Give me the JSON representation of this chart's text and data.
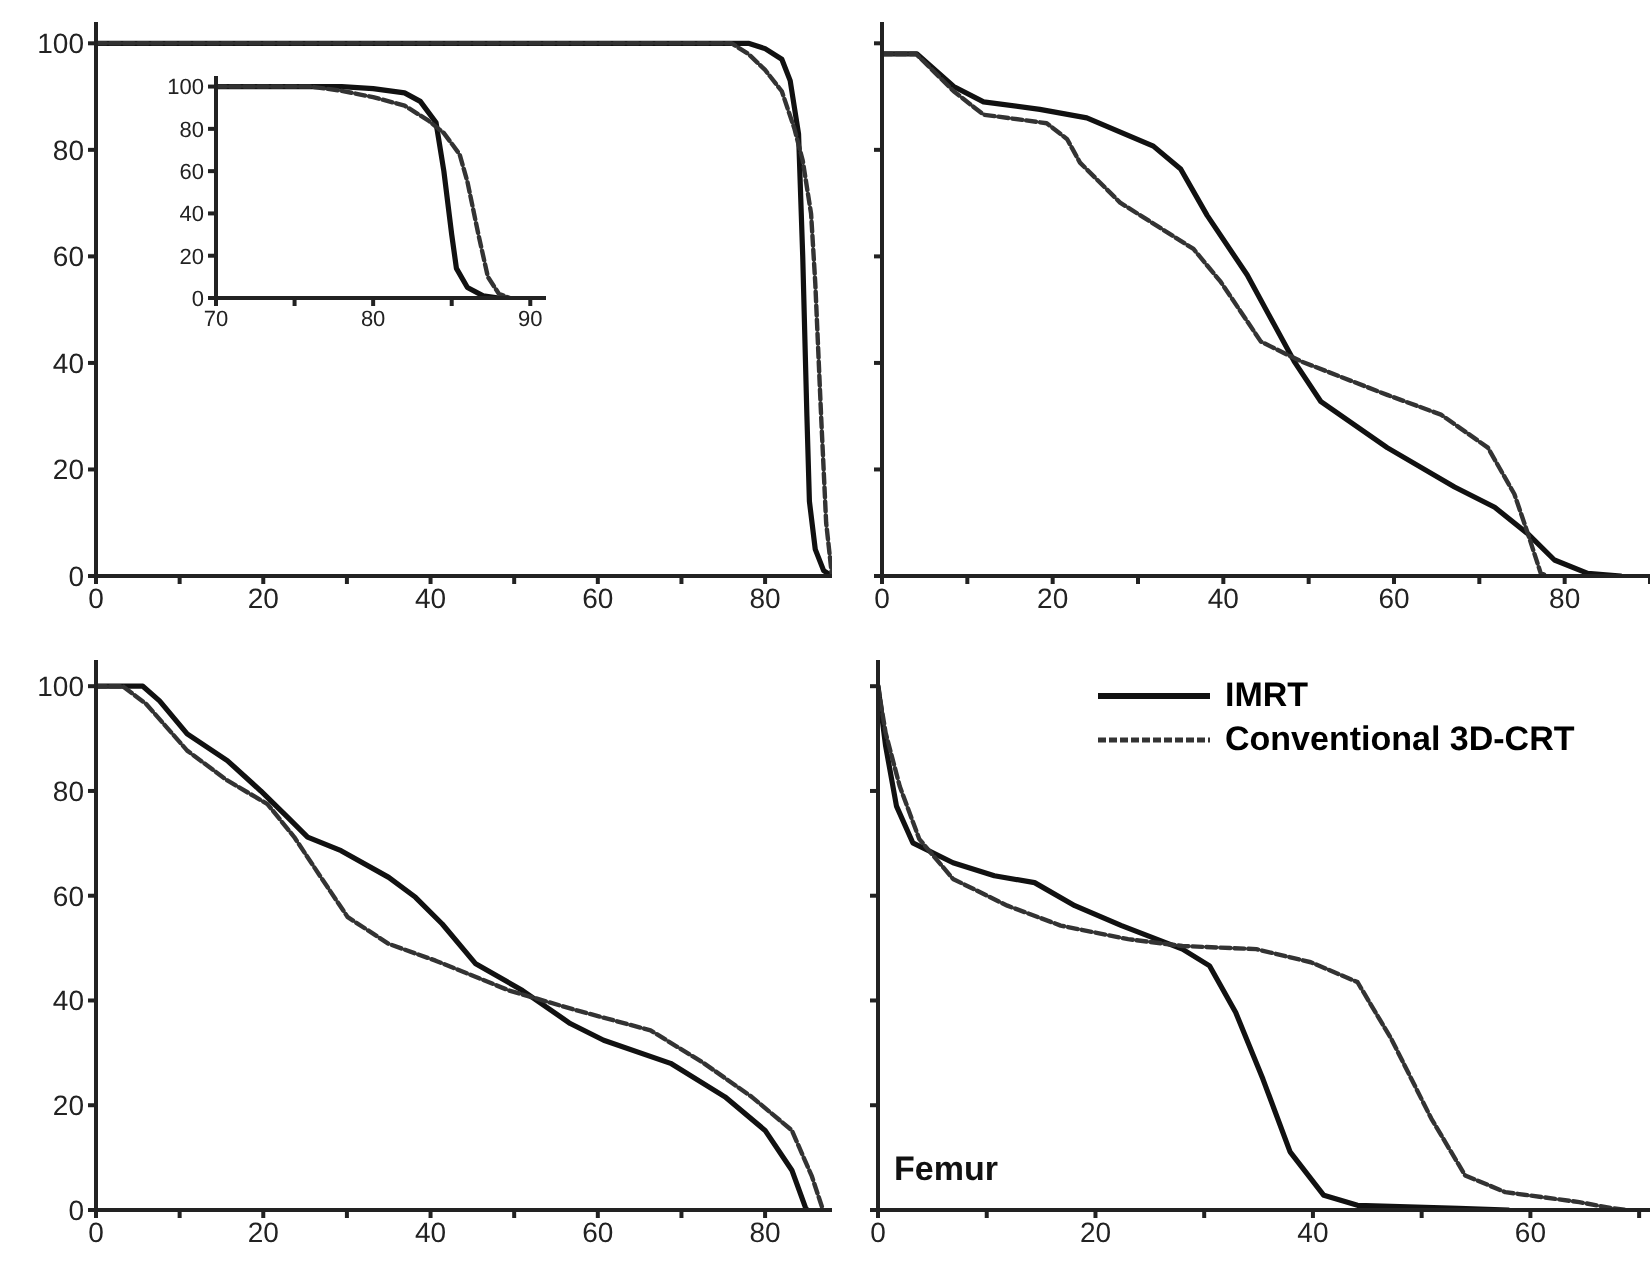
{
  "chart_data": [
    {
      "type": "line",
      "xlim": [
        0,
        88
      ],
      "ylim": [
        0,
        104
      ],
      "xticks": [
        0,
        {
          "value": 10,
          "label": null
        },
        20,
        {
          "value": 30,
          "label": null
        },
        40,
        {
          "value": 50,
          "label": null
        },
        60,
        {
          "value": 70,
          "label": null
        },
        80
      ],
      "yticks": [
        0,
        20,
        40,
        60,
        80,
        100
      ],
      "grid": false,
      "legend": false,
      "marker": "none",
      "series": [
        {
          "color": "#111111",
          "line_style": "solid",
          "x": [
            0,
            78,
            80,
            82,
            83,
            84,
            84.5,
            85,
            85.3,
            86,
            87,
            88
          ],
          "values": [
            100,
            100,
            99,
            97,
            93,
            83,
            60,
            30,
            14,
            5,
            1,
            0
          ]
        },
        {
          "color": "#333333",
          "line_style": "dashed",
          "x": [
            0,
            76,
            78,
            80,
            82,
            83.5,
            84.5,
            85.5,
            86,
            86.7,
            87.3,
            88
          ],
          "values": [
            100,
            100,
            98,
            95,
            91,
            84,
            78,
            68,
            55,
            30,
            10,
            0
          ]
        }
      ]
    },
    {
      "type": "line",
      "xlim": [
        70,
        91
      ],
      "ylim": [
        0,
        105
      ],
      "xticks": [
        70,
        {
          "value": 75,
          "label": null
        },
        80,
        {
          "value": 85,
          "label": null
        },
        90
      ],
      "yticks": [
        0,
        20,
        40,
        60,
        80,
        100
      ],
      "grid": false,
      "legend": false,
      "marker": "none",
      "series": [
        {
          "color": "#111111",
          "line_style": "solid",
          "x": [
            70,
            78,
            80,
            82,
            83,
            84,
            84.5,
            85,
            85.3,
            86,
            87,
            88
          ],
          "values": [
            100,
            100,
            99,
            97,
            93,
            83,
            60,
            30,
            14,
            5,
            1,
            0
          ]
        },
        {
          "color": "#333333",
          "line_style": "dashed",
          "x": [
            70,
            76,
            78,
            80,
            82,
            83.5,
            84.5,
            85.5,
            86,
            86.7,
            87.3,
            88,
            88.7
          ],
          "values": [
            100,
            100,
            98,
            95,
            91,
            84,
            78,
            68,
            55,
            30,
            10,
            2,
            0
          ]
        }
      ]
    },
    {
      "type": "line",
      "xlim": [
        0,
        90
      ],
      "ylim": [
        0,
        104
      ],
      "xticks": [
        0,
        {
          "value": 10,
          "label": null
        },
        20,
        {
          "value": 30,
          "label": null
        },
        40,
        {
          "value": 50,
          "label": null
        },
        60,
        {
          "value": 70,
          "label": null
        },
        80,
        {
          "value": 90,
          "label": null
        }
      ],
      "yticks": [
        {
          "value": 0,
          "label": null
        },
        {
          "value": 20,
          "label": null
        },
        {
          "value": 40,
          "label": null
        },
        {
          "value": 60,
          "label": null
        },
        {
          "value": 80,
          "label": null
        },
        {
          "value": 100,
          "label": null
        }
      ],
      "tick_labels": "x",
      "grid": false,
      "legend": false,
      "marker": "none",
      "series": [
        {
          "color": "#111111",
          "line_style": "solid",
          "x": [
            0,
            4.1,
            8.4,
            11.9,
            18.5,
            24,
            31.8,
            35,
            38.1,
            42.8,
            48.3,
            51.4,
            59.2,
            67.1,
            71.8,
            75.7,
            78.8,
            82.7,
            86.6
          ],
          "values": [
            98,
            98,
            91.9,
            89,
            87.6,
            86,
            80.7,
            76.4,
            67.7,
            56.5,
            40.3,
            32.8,
            24.1,
            16.7,
            12.9,
            7.9,
            3,
            0.5,
            0
          ]
        },
        {
          "color": "#333333",
          "line_style": "dashed",
          "x": [
            0,
            4,
            8.4,
            11.9,
            19.3,
            21.7,
            23.2,
            27.9,
            36.5,
            39.7,
            44.4,
            49.1,
            59.2,
            65.5,
            71,
            74.1,
            75.7,
            77.2,
            78
          ],
          "values": [
            98,
            98,
            91,
            86.6,
            85,
            82,
            77.6,
            70.1,
            61.4,
            55.2,
            44,
            40.3,
            34,
            30.3,
            24.1,
            15.4,
            7.9,
            0.5,
            0
          ]
        }
      ]
    },
    {
      "type": "line",
      "xlim": [
        0,
        88
      ],
      "ylim": [
        0,
        105
      ],
      "xticks": [
        0,
        {
          "value": 10,
          "label": null
        },
        20,
        {
          "value": 30,
          "label": null
        },
        40,
        {
          "value": 50,
          "label": null
        },
        60,
        {
          "value": 70,
          "label": null
        },
        80
      ],
      "yticks": [
        0,
        20,
        40,
        60,
        80,
        100
      ],
      "grid": false,
      "legend": false,
      "marker": "none",
      "series": [
        {
          "color": "#111111",
          "line_style": "solid",
          "x": [
            0,
            5.6,
            7.6,
            10.9,
            15.7,
            19.7,
            22.9,
            25.3,
            29.3,
            35,
            38.2,
            41.4,
            45.4,
            51,
            56.7,
            60.7,
            68.7,
            75.2,
            80,
            83.2,
            84.8,
            85
          ],
          "values": [
            100,
            100,
            97.2,
            90.9,
            85.8,
            80,
            75,
            71.2,
            68.6,
            63.5,
            59.7,
            54.6,
            47,
            41.9,
            35.6,
            32.4,
            28,
            21.6,
            15.2,
            7.6,
            0.6,
            0
          ]
        },
        {
          "color": "#333333",
          "line_style": "dashed",
          "x": [
            0,
            3.2,
            6,
            10.9,
            15.7,
            20.5,
            23.7,
            26.9,
            30.1,
            35,
            40.6,
            49.4,
            57.5,
            66.3,
            72.7,
            78.4,
            83.2,
            85.6,
            86.8,
            87
          ],
          "values": [
            100,
            100,
            96.6,
            87.7,
            82,
            77.5,
            71.2,
            63.5,
            55.9,
            50.8,
            47.6,
            41.9,
            38.1,
            34.3,
            28,
            21.6,
            15.2,
            6.4,
            0.6,
            0
          ]
        }
      ]
    },
    {
      "type": "line",
      "xlim": [
        0,
        71
      ],
      "ylim": [
        0,
        105
      ],
      "xticks": [
        0,
        {
          "value": 10,
          "label": null
        },
        20,
        {
          "value": 30,
          "label": null
        },
        40,
        {
          "value": 50,
          "label": null
        },
        60,
        {
          "value": 70,
          "label": null
        }
      ],
      "yticks": [
        {
          "value": 0,
          "label": null
        },
        {
          "value": 20,
          "label": null
        },
        {
          "value": 40,
          "label": null
        },
        {
          "value": 60,
          "label": null
        },
        {
          "value": 80,
          "label": null
        },
        {
          "value": 100,
          "label": null
        }
      ],
      "tick_labels": "x",
      "grid": false,
      "legend": "top",
      "marker": "none",
      "annotations": [
        "Femur"
      ],
      "series": [
        {
          "name": "IMRT",
          "color": "#111111",
          "line_style": "solid",
          "x": [
            0,
            0.7,
            1.7,
            3.2,
            6.9,
            10.7,
            14.4,
            18.1,
            22.4,
            28,
            30.5,
            32.9,
            35.4,
            37.9,
            41,
            44.1,
            53.4,
            58
          ],
          "values": [
            100,
            88.6,
            77.1,
            70.1,
            66.3,
            63.8,
            62.5,
            58.1,
            54.3,
            49.8,
            46.6,
            37.7,
            25,
            11.1,
            2.8,
            0.9,
            0.3,
            0
          ]
        },
        {
          "name": "Conventional 3D-CRT",
          "color": "#333333",
          "line_style": "dashed",
          "x": [
            0,
            0.7,
            2,
            3.8,
            6.9,
            11.9,
            16.8,
            23,
            28,
            34.8,
            39.8,
            44.1,
            47.2,
            50.9,
            54,
            57.7,
            64.5,
            67.6,
            69
          ],
          "values": [
            100,
            91.1,
            80.9,
            70.8,
            63.2,
            58.1,
            54.3,
            51.7,
            50.4,
            49.8,
            47.3,
            43.5,
            32.7,
            17.4,
            6.6,
            3.4,
            1.5,
            0.3,
            0
          ]
        }
      ]
    }
  ]
}
